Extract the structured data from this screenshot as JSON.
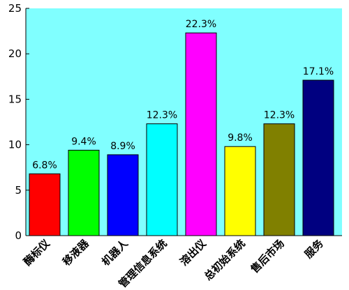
{
  "chart_data": {
    "type": "bar",
    "categories": [
      "酶标仪",
      "移液器",
      "机器人",
      "管理信息系统",
      "溶出仪",
      "总初始系统",
      "售后市场",
      "服务"
    ],
    "values": [
      6.8,
      9.4,
      8.9,
      12.3,
      22.3,
      9.8,
      12.3,
      17.1
    ],
    "value_labels": [
      "6.8%",
      "9.4%",
      "8.9%",
      "12.3%",
      "22.3%",
      "9.8%",
      "12.3%",
      "17.1%"
    ],
    "colors": [
      "#ff0000",
      "#00ff00",
      "#0000ff",
      "#00ffff",
      "#ff00ff",
      "#ffff00",
      "#808000",
      "#000080"
    ],
    "ylim": [
      0,
      25
    ],
    "yticks": [
      0,
      5,
      10,
      15,
      20,
      25
    ],
    "plot_background": "#80ffff"
  }
}
